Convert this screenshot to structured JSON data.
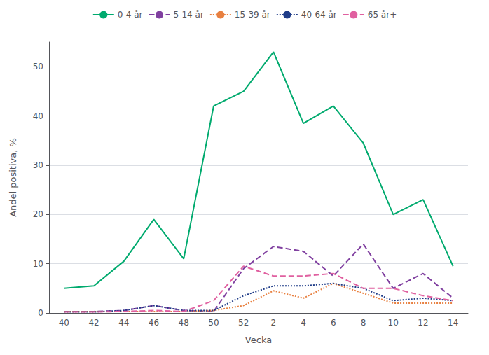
{
  "chart_data": {
    "type": "line",
    "xlabel": "Vecka",
    "ylabel": "Andel positiva, %",
    "categories": [
      "40",
      "42",
      "44",
      "46",
      "48",
      "50",
      "52",
      "2",
      "4",
      "6",
      "8",
      "10",
      "12",
      "14"
    ],
    "series": [
      {
        "name": "0-4 år",
        "color": "#00aa6e",
        "line_style": "solid",
        "values": [
          5.0,
          5.5,
          10.5,
          19.0,
          11.0,
          42.0,
          45.0,
          53.0,
          38.5,
          42.0,
          34.5,
          20.0,
          23.0,
          9.5
        ]
      },
      {
        "name": "5-14 år",
        "color": "#8040a0",
        "line_style": "dashed",
        "values": [
          0.3,
          0.3,
          0.5,
          1.5,
          0.5,
          0.3,
          9.0,
          13.5,
          12.5,
          7.5,
          14.0,
          5.0,
          8.0,
          3.0
        ]
      },
      {
        "name": "15-39 år",
        "color": "#e88040",
        "line_style": "dotted",
        "values": [
          0.3,
          0.3,
          0.3,
          0.3,
          0.3,
          0.5,
          1.5,
          4.5,
          3.0,
          6.0,
          4.0,
          2.0,
          2.0,
          2.0
        ]
      },
      {
        "name": "40-64 år",
        "color": "#1f3c88",
        "line_style": "dotted",
        "values": [
          0.2,
          0.2,
          0.5,
          1.5,
          0.5,
          0.5,
          3.5,
          5.5,
          5.5,
          6.0,
          5.0,
          2.5,
          3.0,
          2.5
        ]
      },
      {
        "name": "65 år+",
        "color": "#e060a0",
        "line_style": "dashed",
        "values": [
          0.2,
          0.2,
          0.3,
          0.5,
          0.3,
          2.5,
          9.5,
          7.5,
          7.5,
          8.0,
          5.0,
          5.0,
          3.5,
          2.5
        ]
      }
    ],
    "ylim": [
      0,
      55
    ],
    "yticks": [
      0,
      10,
      20,
      30,
      40,
      50
    ],
    "grid": true,
    "legend": "top"
  }
}
